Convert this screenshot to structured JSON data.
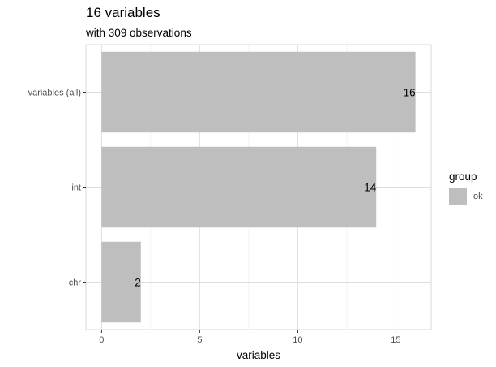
{
  "chart_data": {
    "type": "bar",
    "orientation": "horizontal",
    "title": "16 variables",
    "subtitle": "with 309 observations",
    "xlabel": "variables",
    "ylabel": "",
    "categories": [
      "variables (all)",
      "int",
      "chr"
    ],
    "values": [
      16,
      14,
      2
    ],
    "data_labels": [
      "16",
      "14",
      "2"
    ],
    "xlim": [
      -0.8,
      16.8
    ],
    "xticks": [
      0,
      5,
      10,
      15
    ],
    "xtick_labels": [
      "0",
      "5",
      "10",
      "15"
    ],
    "grid": true,
    "bar_color": "#bebebe",
    "legend": {
      "title": "group",
      "placement": "right",
      "entries": [
        {
          "label": "ok",
          "color": "#bebebe"
        }
      ]
    }
  }
}
